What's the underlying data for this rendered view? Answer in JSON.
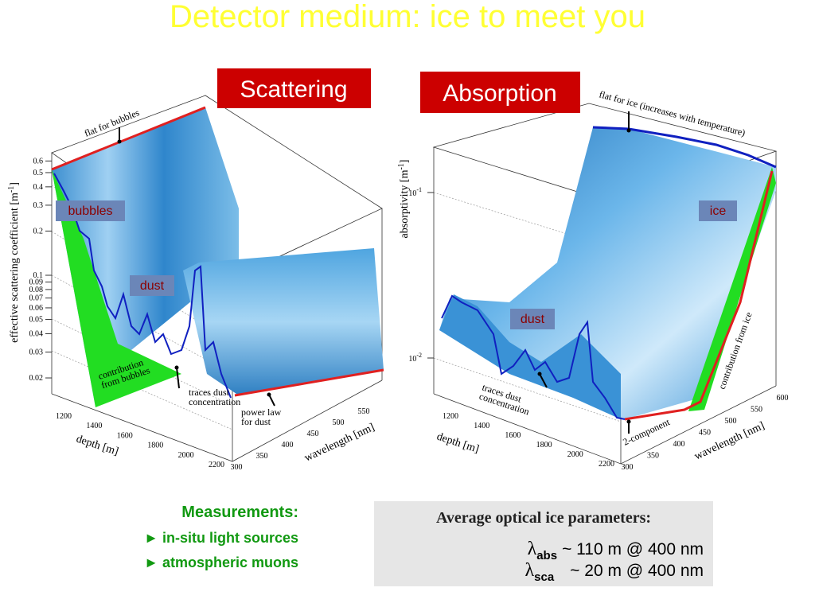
{
  "title": "Detector medium: ice to meet you",
  "scattering": {
    "label": "Scattering",
    "y_axis": {
      "label": "effective scattering coefficient [m",
      "sup": "-1",
      "close": "]",
      "ticks": [
        0.6,
        0.5,
        0.4,
        0.3,
        0.2,
        0.1,
        0.09,
        0.08,
        0.07,
        0.06,
        0.05,
        0.04,
        0.03,
        0.02
      ]
    },
    "depth_axis": {
      "label": "depth [m]",
      "ticks": [
        1200,
        1400,
        1600,
        1800,
        2000,
        2200
      ]
    },
    "wavelength_axis": {
      "label": "wavelength [nm]",
      "ticks": [
        300,
        350,
        400,
        450,
        500,
        550
      ]
    },
    "annotations": {
      "flat": "flat for bubbles",
      "bubbles": "bubbles",
      "dust": "dust",
      "contribution": [
        "contribution",
        "from bubbles"
      ],
      "traces": [
        "traces dust",
        "concentration"
      ],
      "power_law": [
        "power law",
        "for dust"
      ]
    }
  },
  "absorption": {
    "label": "Absorption",
    "y_axis": {
      "label": "absorptivity [m",
      "sup": "-1",
      "close": "]",
      "ticks": [
        {
          "base": "10",
          "exp": "-1"
        },
        {
          "base": "10",
          "exp": "-2"
        }
      ]
    },
    "depth_axis": {
      "label": "depth [m]",
      "ticks": [
        1200,
        1400,
        1600,
        1800,
        2000,
        2200
      ]
    },
    "wavelength_axis": {
      "label": "wavelength [nm]",
      "ticks": [
        300,
        350,
        400,
        450,
        500,
        550,
        600
      ]
    },
    "annotations": {
      "flat": "flat for ice (increases with temperature)",
      "ice": "ice",
      "dust": "dust",
      "traces": [
        "traces dust",
        "concentration"
      ],
      "two_component": "2-component",
      "contribution": "contribution from ice"
    }
  },
  "measurements": {
    "heading": "Measurements:",
    "items": [
      "► in-situ light sources",
      "► atmospheric muons"
    ]
  },
  "parameters": {
    "heading": "Average optical ice parameters:",
    "rows": [
      {
        "symbol": "λ",
        "sub": "abs",
        "text": "~ 110 m @ 400 nm"
      },
      {
        "symbol": "λ",
        "sub": "sca",
        "text": "~ 20 m @ 400 nm"
      }
    ]
  }
}
